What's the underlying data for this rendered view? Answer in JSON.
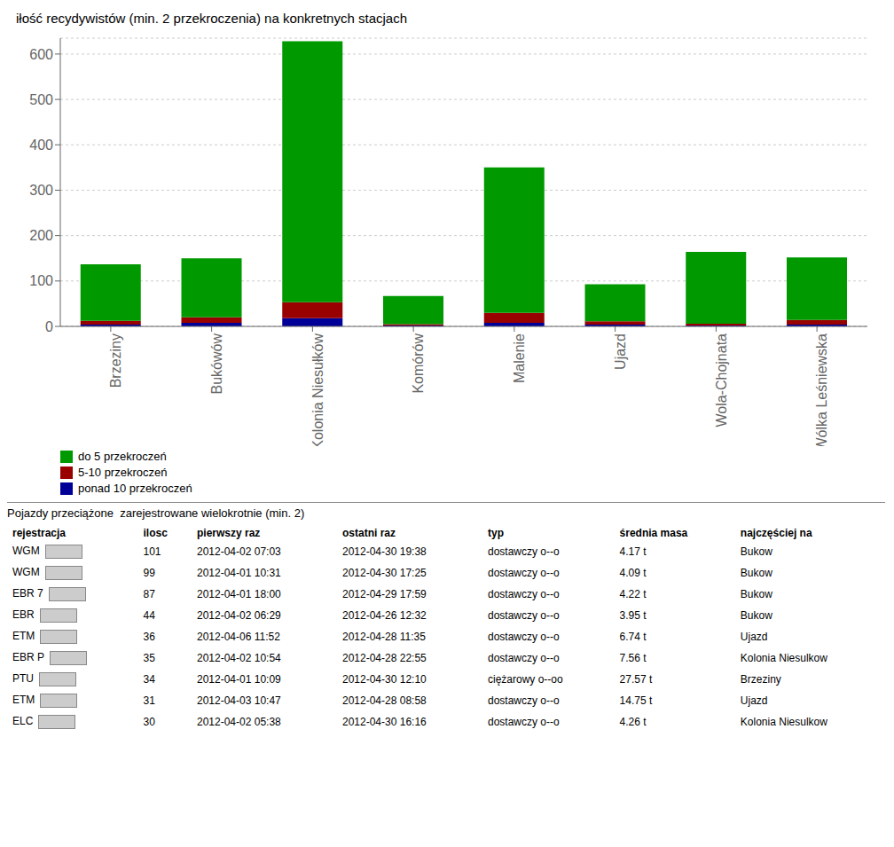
{
  "chart_data": [
    {
      "type": "bar",
      "title": "iłość recydywistów (min. 2 przekroczenia) na konkretnych stacjach",
      "categories": [
        "Brzeziny",
        "Bukówów",
        "Kolonia Niesułków",
        "Komórów",
        "Malenie",
        "Ujazd",
        "Wola-Chojnata",
        "Wólka Leśniewska"
      ],
      "series": [
        {
          "name": "do 5 przekroczeń",
          "color": "#009900",
          "values": [
            125,
            130,
            575,
            62,
            320,
            82,
            158,
            138
          ]
        },
        {
          "name": "5-10 przekroczeń",
          "color": "#990000",
          "values": [
            8,
            12,
            35,
            3,
            22,
            7,
            4,
            10
          ]
        },
        {
          "name": "ponad 10 przekroczeń",
          "color": "#000099",
          "values": [
            4,
            8,
            18,
            2,
            8,
            4,
            2,
            4
          ]
        }
      ],
      "stacked": true,
      "ylim": [
        0,
        635
      ],
      "yticks": [
        0,
        100,
        200,
        300,
        400,
        500,
        600
      ],
      "grid": true
    },
    {
      "type": "table",
      "title": "Pojazdy przeciążone  zarejestrowane wielokrotnie (min. 2)",
      "columns": [
        "rejestracja",
        "ilosc",
        "pierwszy raz",
        "ostatni raz",
        "typ",
        "średnia masa",
        "najczęściej na"
      ],
      "rows": [
        [
          "WGM",
          "101",
          "2012-04-02 07:03",
          "2012-04-30 19:38",
          "dostawczy o--o",
          "4.17 t",
          "Bukow"
        ],
        [
          "WGM",
          "99",
          "2012-04-01 10:31",
          "2012-04-30 17:25",
          "dostawczy o--o",
          "4.09 t",
          "Bukow"
        ],
        [
          "EBR 7",
          "87",
          "2012-04-01 18:00",
          "2012-04-29 17:59",
          "dostawczy o--o",
          "4.22 t",
          "Bukow"
        ],
        [
          "EBR",
          "44",
          "2012-04-02 06:29",
          "2012-04-26 12:32",
          "dostawczy o--o",
          "3.95 t",
          "Bukow"
        ],
        [
          "ETM",
          "36",
          "2012-04-06 11:52",
          "2012-04-28 11:35",
          "dostawczy o--o",
          "6.74 t",
          "Ujazd"
        ],
        [
          "EBR P",
          "35",
          "2012-04-02 10:54",
          "2012-04-28 22:55",
          "dostawczy o--o",
          "7.56 t",
          "Kolonia Niesulkow"
        ],
        [
          "PTU",
          "34",
          "2012-04-01 10:09",
          "2012-04-30 12:10",
          "ciężarowy o--oo",
          "27.57 t",
          "Brzeziny"
        ],
        [
          "ETM",
          "31",
          "2012-04-03 10:47",
          "2012-04-28 08:58",
          "dostawczy o--o",
          "14.75 t",
          "Ujazd"
        ],
        [
          "ELC",
          "30",
          "2012-04-02 05:38",
          "2012-04-30 16:16",
          "dostawczy o--o",
          "4.26 t",
          "Kolonia Niesulkow"
        ]
      ]
    }
  ]
}
